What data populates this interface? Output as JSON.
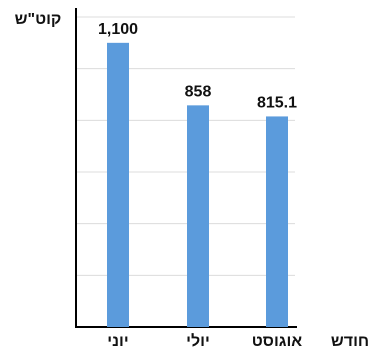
{
  "chart_data": {
    "type": "bar",
    "y_label": "קוט\"ש",
    "x_label": "חודש",
    "categories": [
      "יוני",
      "יולי",
      "אוגוסט"
    ],
    "values": [
      1100,
      858,
      815.1
    ],
    "value_labels": [
      "1,100",
      "858",
      "815.1"
    ],
    "color": "#5b9bdc",
    "ylim": [
      0,
      1200
    ],
    "yticks": [
      0,
      200,
      400,
      600,
      800,
      1000,
      1200
    ],
    "grid": true
  }
}
